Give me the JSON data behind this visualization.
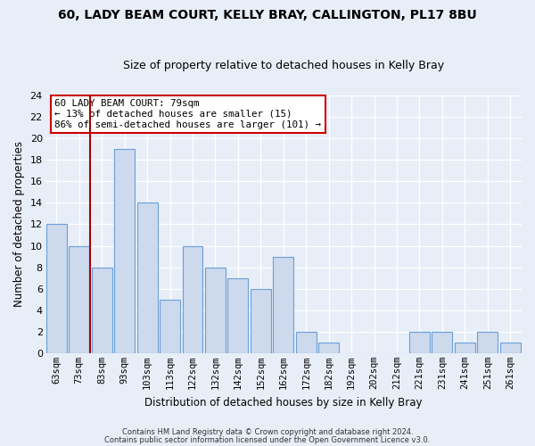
{
  "title": "60, LADY BEAM COURT, KELLY BRAY, CALLINGTON, PL17 8BU",
  "subtitle": "Size of property relative to detached houses in Kelly Bray",
  "xlabel": "Distribution of detached houses by size in Kelly Bray",
  "ylabel": "Number of detached properties",
  "bins": [
    "63sqm",
    "73sqm",
    "83sqm",
    "93sqm",
    "103sqm",
    "113sqm",
    "122sqm",
    "132sqm",
    "142sqm",
    "152sqm",
    "162sqm",
    "172sqm",
    "182sqm",
    "192sqm",
    "202sqm",
    "212sqm",
    "221sqm",
    "231sqm",
    "241sqm",
    "251sqm",
    "261sqm"
  ],
  "values": [
    12,
    10,
    8,
    19,
    14,
    5,
    10,
    8,
    7,
    6,
    9,
    2,
    1,
    0,
    0,
    0,
    2,
    2,
    1,
    2,
    1
  ],
  "bar_color": "#cdd9ed",
  "bar_edge_color": "#6a9fd8",
  "highlight_line_color": "#aa0000",
  "annotation_title": "60 LADY BEAM COURT: 79sqm",
  "annotation_line1": "← 13% of detached houses are smaller (15)",
  "annotation_line2": "86% of semi-detached houses are larger (101) →",
  "annotation_box_edge": "#cc0000",
  "ylim": [
    0,
    24
  ],
  "yticks": [
    0,
    2,
    4,
    6,
    8,
    10,
    12,
    14,
    16,
    18,
    20,
    22,
    24
  ],
  "footer1": "Contains HM Land Registry data © Crown copyright and database right 2024.",
  "footer2": "Contains public sector information licensed under the Open Government Licence v3.0.",
  "bg_color": "#e8eef8",
  "plot_bg_color": "#e8eef8",
  "grid_color": "#ffffff",
  "title_fontsize": 10,
  "subtitle_fontsize": 9
}
